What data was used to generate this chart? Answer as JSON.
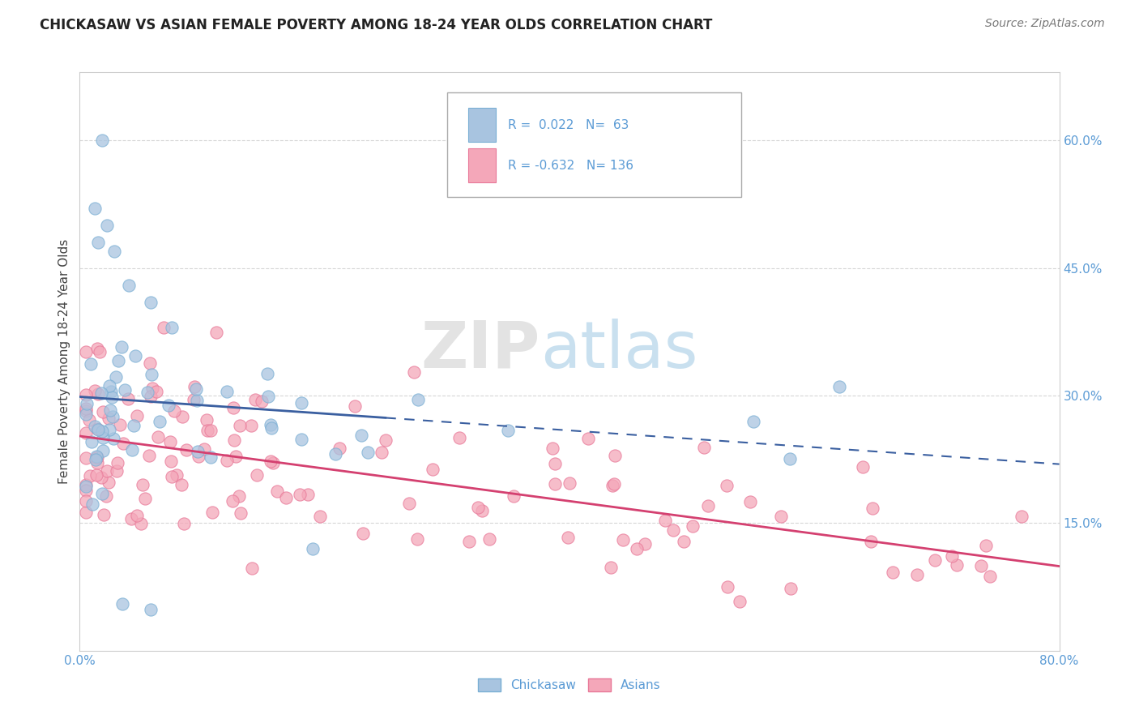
{
  "title": "CHICKASAW VS ASIAN FEMALE POVERTY AMONG 18-24 YEAR OLDS CORRELATION CHART",
  "source": "Source: ZipAtlas.com",
  "ylabel": "Female Poverty Among 18-24 Year Olds",
  "xlim": [
    0.0,
    0.8
  ],
  "ylim": [
    0.0,
    0.68
  ],
  "chickasaw_color": "#a8c4e0",
  "chickasaw_edge": "#7aafd4",
  "asians_color": "#f4a7b9",
  "asians_edge": "#e87898",
  "chickasaw_line_color": "#3a5fa0",
  "asians_line_color": "#d44070",
  "R_chickasaw": 0.022,
  "N_chickasaw": 63,
  "R_asians": -0.632,
  "N_asians": 136,
  "watermark": "ZIPatlas",
  "grid_color": "#cccccc",
  "ytick_vals": [
    0.15,
    0.3,
    0.45,
    0.6
  ],
  "ytick_labels": [
    "15.0%",
    "30.0%",
    "45.0%",
    "60.0%"
  ],
  "xtick_vals": [
    0.0,
    0.1,
    0.2,
    0.3,
    0.4,
    0.5,
    0.6,
    0.7,
    0.8
  ],
  "xtick_labels": [
    "0.0%",
    "",
    "",
    "",
    "",
    "",
    "",
    "",
    "80.0%"
  ],
  "tick_color": "#5b9bd5",
  "legend_text_color": "#5b9bd5"
}
